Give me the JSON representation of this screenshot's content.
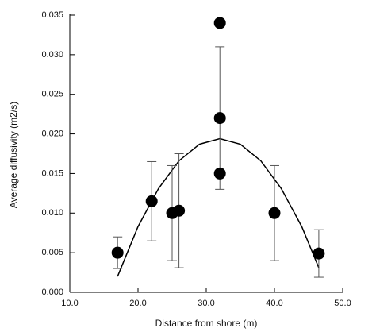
{
  "chart_data": {
    "type": "scatter",
    "x_label": "Distance from shore (m)",
    "y_label": "Average diffusivity (m2/s)",
    "series": [
      {
        "color": "#000000",
        "x": [
          17,
          22,
          25,
          26,
          32,
          32,
          32,
          40,
          46.5
        ],
        "values": [
          0.005,
          0.0115,
          0.01,
          0.0103,
          0.034,
          0.022,
          0.015,
          0.01,
          0.0049
        ],
        "errors": [
          0.002,
          0.005,
          0.006,
          0.0072,
          null,
          0.009,
          null,
          0.006,
          0.003
        ]
      }
    ],
    "fit": {
      "color": "#000000",
      "x": [
        17,
        20,
        23,
        26,
        29,
        32,
        35,
        38,
        41,
        44,
        46.5
      ],
      "values": [
        0.002,
        0.0083,
        0.0131,
        0.0166,
        0.0187,
        0.0194,
        0.0187,
        0.0166,
        0.0131,
        0.0083,
        0.0031
      ]
    },
    "xlim": [
      10,
      50
    ],
    "xticks": [
      {
        "value": 10,
        "label": "10.0"
      },
      {
        "value": 20,
        "label": "20.0"
      },
      {
        "value": 30,
        "label": "30.0"
      },
      {
        "value": 40,
        "label": "40.0"
      },
      {
        "value": 50,
        "label": "50.0"
      }
    ],
    "ylim": [
      0,
      0.035
    ],
    "yticks": [
      {
        "value": 0,
        "label": "0.000"
      },
      {
        "value": 0.005,
        "label": "0.005"
      },
      {
        "value": 0.01,
        "label": "0.010"
      },
      {
        "value": 0.015,
        "label": "0.015"
      },
      {
        "value": 0.02,
        "label": "0.020"
      },
      {
        "value": 0.025,
        "label": "0.025"
      },
      {
        "value": 0.03,
        "label": "0.030"
      },
      {
        "value": 0.035,
        "label": "0.035"
      }
    ]
  }
}
